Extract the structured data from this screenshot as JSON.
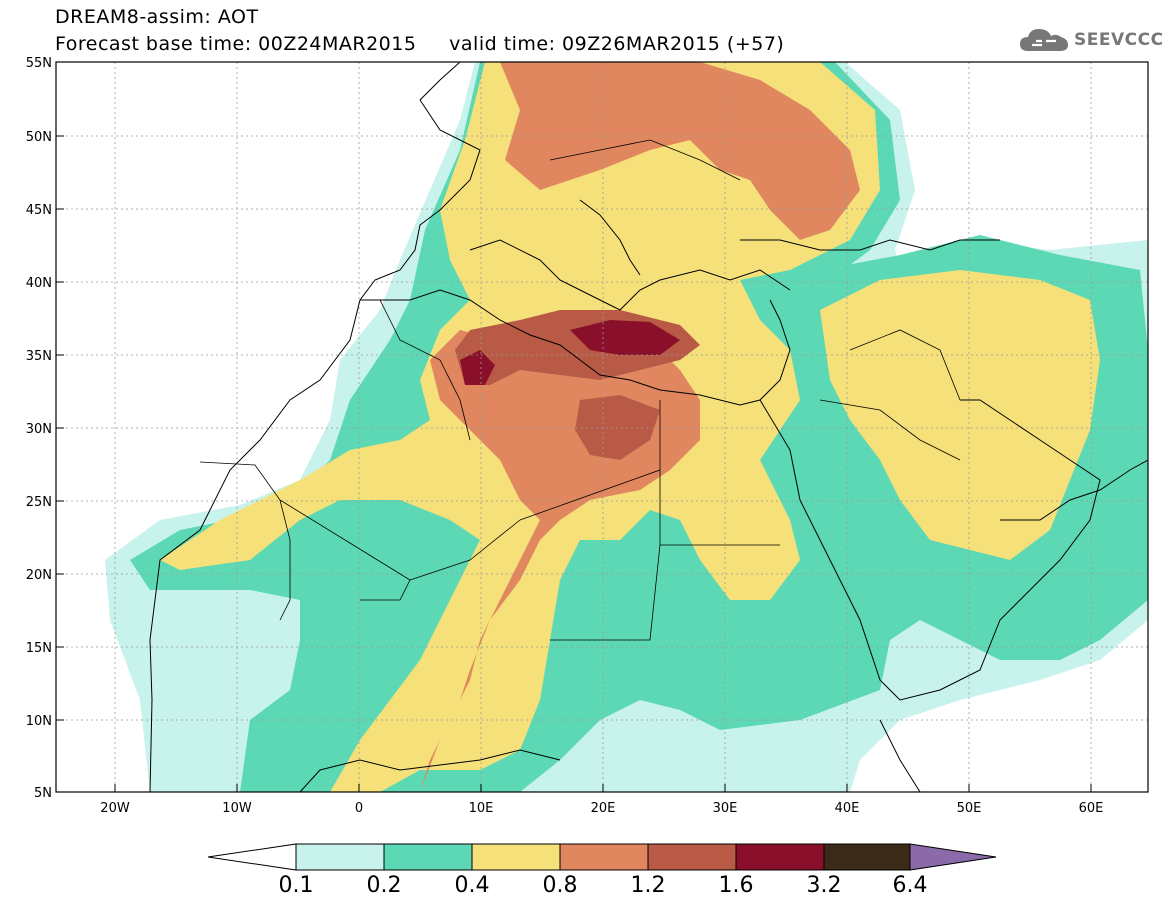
{
  "header": {
    "line1": "DREAM8-assim: AOT",
    "line2": "Forecast base time: 00Z24MAR2015     valid time: 09Z26MAR2015 (+57)"
  },
  "logo": {
    "icon": "cloud-icon",
    "text": "SEEVCCC"
  },
  "map": {
    "lat_labels": [
      "55N",
      "50N",
      "45N",
      "40N",
      "35N",
      "30N",
      "25N",
      "20N",
      "15N",
      "10N",
      "5N"
    ],
    "lon_labels": [
      "20W",
      "10W",
      "0",
      "10E",
      "20E",
      "30E",
      "40E",
      "50E",
      "60E"
    ]
  },
  "colorbar": {
    "labels": [
      "0.1",
      "0.2",
      "0.4",
      "0.8",
      "1.2",
      "1.6",
      "3.2",
      "6.4"
    ],
    "colors": [
      "#c8f2ec",
      "#5cd9b4",
      "#f5e07a",
      "#e0875f",
      "#b85a45",
      "#8a0f2a",
      "#3c2a18",
      "#8a6aa8"
    ],
    "under_color": "#ffffff"
  }
}
